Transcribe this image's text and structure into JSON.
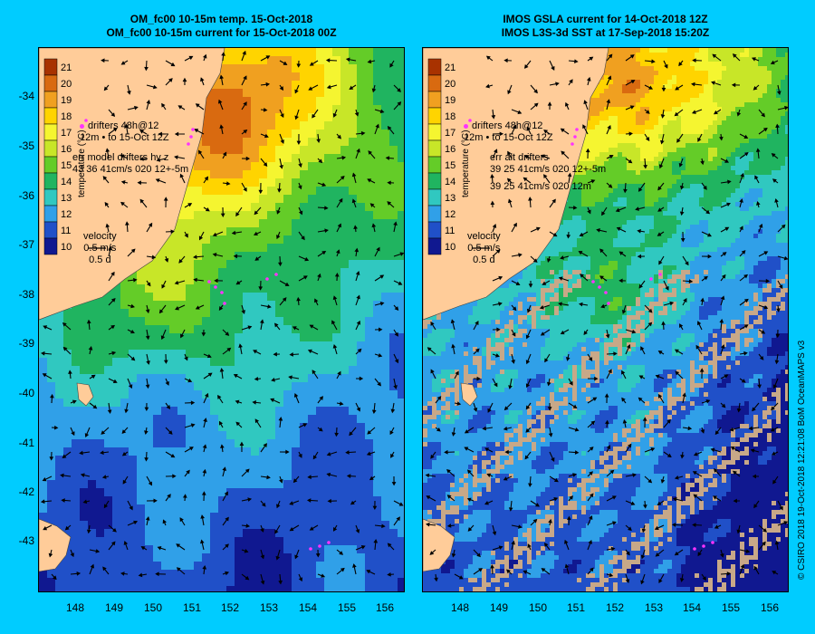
{
  "left": {
    "title_line1": "OM_fc00 10-15m temp. 15-Oct-2018",
    "title_line2": "OM_fc00 10-15m current for 15-Oct-2018 00Z",
    "drifter_label_depth": "12m",
    "drifter_label_1": "drifters 48h@12",
    "drifter_label_2": "to 15-Oct 12Z",
    "err_line_1": "err model drifters hv z",
    "err_line_2": "43 36 41cm/s 020 12+-5m",
    "err_line_3": ""
  },
  "right": {
    "title_line1": "IMOS GSLA current for 14-Oct-2018 12Z",
    "title_line2": "IMOS L3S-3d SST at 17-Sep-2018 15:20Z",
    "drifter_label_depth": "12m",
    "drifter_label_1": "drifters 48h@12",
    "drifter_label_2": "to 15-Oct 12Z",
    "err_line_1": "err alt drifters",
    "err_line_2": "39 25 41cm/s 020 12+-5m",
    "err_line_3": "39 25 41cm/s 020 12m"
  },
  "velocity_legend": {
    "title": "velocity",
    "speed": "0.5 m/s",
    "time": "0.5 d"
  },
  "colorbar": {
    "label": "temperature (°C)",
    "ticks": [
      "21",
      "20",
      "19",
      "18",
      "17",
      "16",
      "15",
      "14",
      "13",
      "12",
      "11",
      "10"
    ],
    "colors": [
      "#a83200",
      "#d96a10",
      "#f0a020",
      "#ffd400",
      "#f5f530",
      "#c8e628",
      "#64cc28",
      "#20b460",
      "#30c8c0",
      "#30a0e8",
      "#2050c8",
      "#101890"
    ]
  },
  "axes": {
    "lat_ticks": [
      "-34",
      "-35",
      "-36",
      "-37",
      "-38",
      "-39",
      "-40",
      "-41",
      "-42",
      "-43"
    ],
    "lon_ticks": [
      "148",
      "149",
      "150",
      "151",
      "152",
      "153",
      "154",
      "155",
      "156"
    ]
  },
  "colors": {
    "background": "#00ccff",
    "land": "#ffcc99",
    "drifter": "#ff33ff",
    "arrow": "#000000",
    "nodata": "#c8a888"
  },
  "credit": "© CSIRO 2018   19-Oct-2018 12:21:08 BoM OceanMAPS v3"
}
